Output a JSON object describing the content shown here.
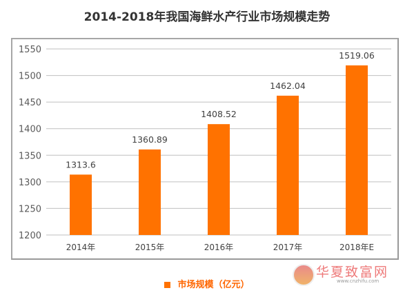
{
  "chart_data": {
    "type": "bar",
    "title": "2014-2018年我国海鲜水产行业市场规模走势",
    "categories": [
      "2014年",
      "2015年",
      "2016年",
      "2017年",
      "2018年E"
    ],
    "series": [
      {
        "name": "市场规模（亿元）",
        "values": [
          1313.6,
          1360.89,
          1408.52,
          1462.04,
          1519.06
        ],
        "labels": [
          "1313.6",
          "1360.89",
          "1408.52",
          "1462.04",
          "1519.06"
        ],
        "color": "#ff7200"
      }
    ],
    "xlabel": "",
    "ylabel": "",
    "ylim": [
      1200,
      1550
    ],
    "yticks": [
      1200,
      1250,
      1300,
      1350,
      1400,
      1450,
      1500,
      1550
    ],
    "grid": true,
    "legend": "bottom-center"
  },
  "watermark": {
    "name": "华夏致富网",
    "url": "www.cnzhifu.com"
  }
}
